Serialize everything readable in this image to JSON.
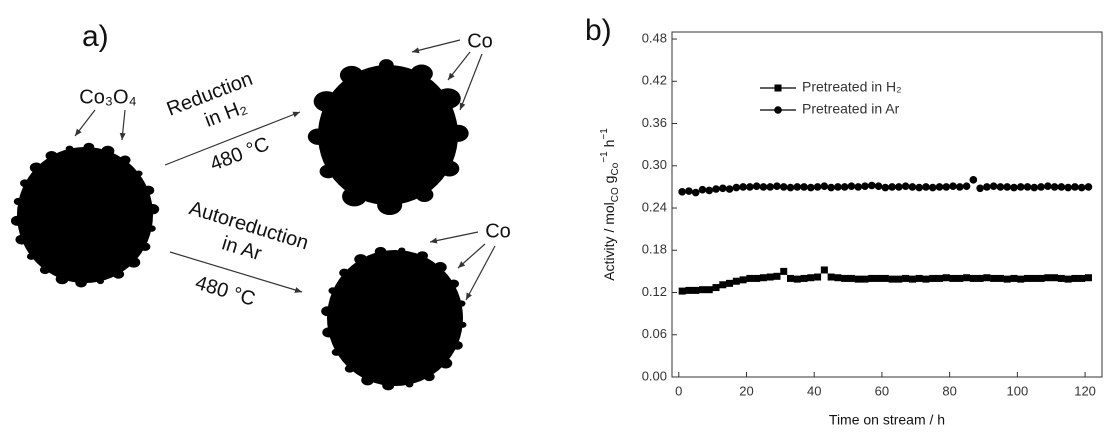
{
  "diagram": {
    "panel_label": "a)",
    "precursor_label": "Co₃O₄",
    "top_route": {
      "line1": "Reduction",
      "line2": "in H₂",
      "temperature": "480 °C",
      "product_label": "Co"
    },
    "bottom_route": {
      "line1": "Autoreduction",
      "line2": "in Ar",
      "temperature": "480 °C",
      "product_label": "Co"
    }
  },
  "chart_data": {
    "type": "scatter",
    "panel_label": "b)",
    "x_label": "Time on stream / h",
    "y_label": [
      {
        "text": "Activity / mol",
        "shift": "none"
      },
      {
        "text": "CO",
        "shift": "sub"
      },
      {
        "text": " g",
        "shift": "none"
      },
      {
        "text": "Co",
        "shift": "sub"
      },
      {
        "text": "−1",
        "shift": "super"
      },
      {
        "text": " h",
        "shift": "none"
      },
      {
        "text": "−1",
        "shift": "super"
      }
    ],
    "xlim": [
      -2,
      125
    ],
    "ylim": [
      0,
      0.49
    ],
    "xticks": [
      0,
      20,
      40,
      60,
      80,
      100,
      120
    ],
    "yticks": [
      {
        "value": 0,
        "label": "0.00"
      },
      0.06,
      0.12,
      0.18,
      0.24,
      {
        "value": 0.3,
        "label": "0.30"
      },
      0.36,
      0.42,
      0.48
    ],
    "x": [
      1,
      3,
      5,
      7,
      9,
      11,
      13,
      15,
      17,
      19,
      21,
      23,
      25,
      27,
      29,
      31,
      33,
      35,
      37,
      39,
      41,
      43,
      45,
      47,
      49,
      51,
      53,
      55,
      57,
      59,
      61,
      63,
      65,
      67,
      69,
      71,
      73,
      75,
      77,
      79,
      81,
      83,
      85,
      87,
      89,
      91,
      93,
      95,
      97,
      99,
      101,
      103,
      105,
      107,
      109,
      111,
      113,
      115,
      117,
      119,
      121
    ],
    "legend": "upper left",
    "series": [
      {
        "name": "Pretreated in H₂",
        "color": "#000000",
        "marker": "square",
        "values": [
          0.122,
          0.123,
          0.123,
          0.124,
          0.124,
          0.127,
          0.131,
          0.133,
          0.136,
          0.138,
          0.14,
          0.14,
          0.141,
          0.142,
          0.143,
          0.15,
          0.14,
          0.139,
          0.14,
          0.141,
          0.142,
          0.152,
          0.142,
          0.141,
          0.14,
          0.14,
          0.139,
          0.139,
          0.14,
          0.14,
          0.14,
          0.139,
          0.139,
          0.14,
          0.139,
          0.14,
          0.139,
          0.14,
          0.14,
          0.141,
          0.14,
          0.14,
          0.141,
          0.14,
          0.14,
          0.141,
          0.14,
          0.14,
          0.139,
          0.14,
          0.139,
          0.14,
          0.14,
          0.14,
          0.141,
          0.141,
          0.14,
          0.139,
          0.14,
          0.14,
          0.141
        ]
      },
      {
        "name": "Pretreated in Ar",
        "color": "#000000",
        "marker": "circle",
        "values": [
          0.263,
          0.264,
          0.262,
          0.266,
          0.265,
          0.267,
          0.268,
          0.267,
          0.269,
          0.27,
          0.27,
          0.271,
          0.27,
          0.27,
          0.271,
          0.27,
          0.269,
          0.27,
          0.27,
          0.269,
          0.27,
          0.271,
          0.269,
          0.27,
          0.27,
          0.271,
          0.27,
          0.271,
          0.272,
          0.271,
          0.269,
          0.27,
          0.27,
          0.271,
          0.27,
          0.269,
          0.27,
          0.269,
          0.27,
          0.27,
          0.271,
          0.27,
          0.271,
          0.28,
          0.268,
          0.27,
          0.271,
          0.27,
          0.27,
          0.269,
          0.27,
          0.27,
          0.269,
          0.27,
          0.271,
          0.27,
          0.27,
          0.269,
          0.27,
          0.269,
          0.27
        ]
      }
    ]
  }
}
